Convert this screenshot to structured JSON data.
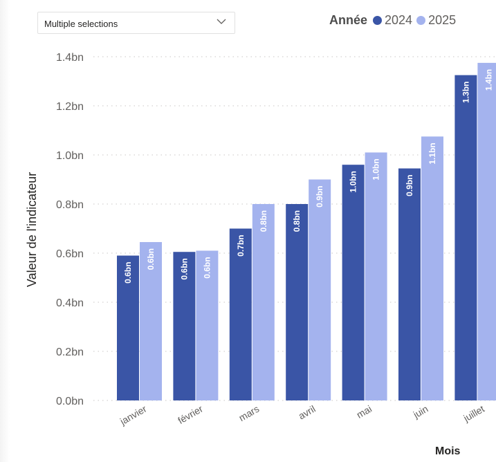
{
  "slicer": {
    "value": "Multiple selections",
    "icon": "chevron-down-icon"
  },
  "legend": {
    "title": "Année",
    "items": [
      {
        "name": "2024",
        "color": "#3A55A6"
      },
      {
        "name": "2025",
        "color": "#A4B3EE"
      }
    ]
  },
  "chart_data": {
    "type": "bar",
    "ylabel": "Valeur de l'indicateur",
    "xlabel": "Mois",
    "ylim": [
      0,
      1.4
    ],
    "yticks": [
      {
        "value": 0,
        "label": "0.0bn"
      },
      {
        "value": 0.2,
        "label": "0.2bn"
      },
      {
        "value": 0.4,
        "label": "0.4bn"
      },
      {
        "value": 0.6,
        "label": "0.6bn"
      },
      {
        "value": 0.8,
        "label": "0.8bn"
      },
      {
        "value": 1.0,
        "label": "1.0bn"
      },
      {
        "value": 1.2,
        "label": "1.2bn"
      },
      {
        "value": 1.4,
        "label": "1.4bn"
      }
    ],
    "grid": true,
    "legend_position": "top-right",
    "categories": [
      "janvier",
      "février",
      "mars",
      "avril",
      "mai",
      "juin",
      "juillet"
    ],
    "series": [
      {
        "name": "2024",
        "color": "#3A55A6",
        "values": [
          0.59,
          0.605,
          0.7,
          0.8,
          0.96,
          0.945,
          1.325
        ],
        "labels": [
          "0.6bn",
          "0.6bn",
          "0.7bn",
          "0.8bn",
          "1.0bn",
          "0.9bn",
          "1.3bn"
        ]
      },
      {
        "name": "2025",
        "color": "#A4B3EE",
        "values": [
          0.645,
          0.61,
          0.8,
          0.9,
          1.01,
          1.075,
          1.375
        ],
        "labels": [
          "0.6bn",
          "0.6bn",
          "0.8bn",
          "0.9bn",
          "1.0bn",
          "1.1bn",
          "1.4bn"
        ]
      }
    ]
  }
}
